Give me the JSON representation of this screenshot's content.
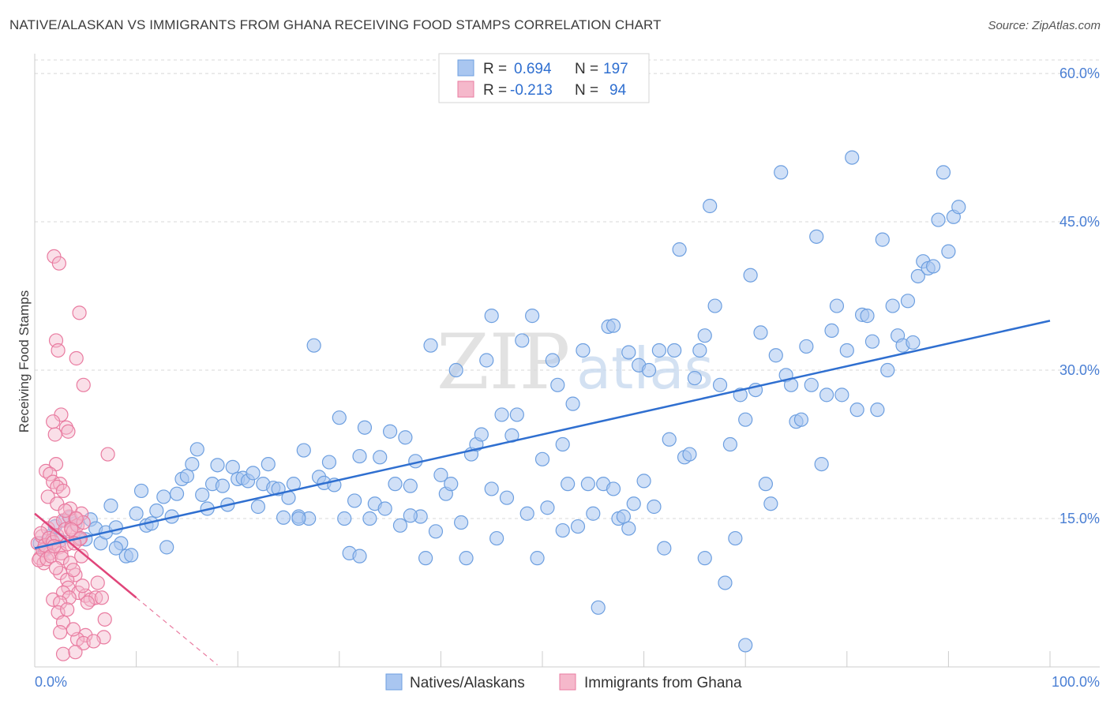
{
  "title": "NATIVE/ALASKAN VS IMMIGRANTS FROM GHANA RECEIVING FOOD STAMPS CORRELATION CHART",
  "source": "Source: ZipAtlas.com",
  "colors": {
    "blue": "#6d9fe0",
    "blue_fill": "#a9c6f0",
    "blue_line": "#2f6fd0",
    "pink": "#e97ba0",
    "pink_fill": "#f5b8cb",
    "pink_line": "#e0457a",
    "grid": "#d8d8d8",
    "axis_text": "#4a7fd4"
  },
  "legend": {
    "rows": [
      {
        "r_label": "R =",
        "r_value": "0.694",
        "n_label": "N =",
        "n_value": "197"
      },
      {
        "r_label": "R =",
        "r_value": "-0.213",
        "n_label": "N =",
        "n_value": "94"
      }
    ]
  },
  "chart_data": {
    "type": "scatter",
    "xlabel": "",
    "ylabel": "Receiving Food Stamps",
    "xlim": [
      0,
      100
    ],
    "ylim": [
      0,
      62
    ],
    "x_tick_labels": [
      "0.0%",
      "100.0%"
    ],
    "y_ticks": [
      15,
      30,
      45,
      60
    ],
    "y_tick_labels": [
      "15.0%",
      "30.0%",
      "45.0%",
      "60.0%"
    ],
    "watermark": "ZIPatlas",
    "series": [
      {
        "name": "Natives/Alaskans",
        "r": 0.694,
        "n": 197,
        "trend": {
          "x": [
            0,
            100
          ],
          "y": [
            12.0,
            35.0
          ]
        },
        "points": [
          [
            0.5,
            12.5
          ],
          [
            1,
            11.8
          ],
          [
            1.5,
            13.2
          ],
          [
            2,
            14.2
          ],
          [
            2.5,
            12.8
          ],
          [
            3,
            14.8
          ],
          [
            3.5,
            15.1
          ],
          [
            4,
            14.5
          ],
          [
            4.5,
            13.0
          ],
          [
            5,
            12.9
          ],
          [
            5.5,
            14.9
          ],
          [
            6,
            14.0
          ],
          [
            6.5,
            12.5
          ],
          [
            7,
            13.6
          ],
          [
            7.5,
            16.3
          ],
          [
            8,
            14.1
          ],
          [
            8.5,
            12.5
          ],
          [
            9,
            11.2
          ],
          [
            9.5,
            11.3
          ],
          [
            10,
            15.5
          ],
          [
            10.5,
            17.8
          ],
          [
            11,
            14.3
          ],
          [
            11.5,
            14.5
          ],
          [
            12,
            15.8
          ],
          [
            12.7,
            17.2
          ],
          [
            13,
            12.1
          ],
          [
            13.5,
            15.2
          ],
          [
            14,
            17.5
          ],
          [
            14.5,
            19.0
          ],
          [
            15,
            19.3
          ],
          [
            15.5,
            20.5
          ],
          [
            16,
            22.0
          ],
          [
            16.5,
            17.4
          ],
          [
            17,
            16.0
          ],
          [
            17.5,
            18.5
          ],
          [
            18,
            20.4
          ],
          [
            18.5,
            18.3
          ],
          [
            19,
            16.4
          ],
          [
            19.5,
            20.2
          ],
          [
            20,
            19.0
          ],
          [
            20.5,
            19.1
          ],
          [
            21,
            18.8
          ],
          [
            21.5,
            19.6
          ],
          [
            22,
            16.2
          ],
          [
            22.5,
            18.5
          ],
          [
            23,
            20.5
          ],
          [
            23.5,
            18.1
          ],
          [
            24,
            18.0
          ],
          [
            24.5,
            15.1
          ],
          [
            25,
            17.1
          ],
          [
            25.5,
            18.5
          ],
          [
            26,
            15.2
          ],
          [
            26.5,
            21.9
          ],
          [
            27,
            15.0
          ],
          [
            27.5,
            32.5
          ],
          [
            28,
            19.2
          ],
          [
            28.5,
            18.6
          ],
          [
            29,
            20.7
          ],
          [
            29.5,
            18.4
          ],
          [
            30,
            25.2
          ],
          [
            30.5,
            15.0
          ],
          [
            31,
            11.5
          ],
          [
            31.5,
            16.8
          ],
          [
            32,
            21.3
          ],
          [
            32.5,
            24.2
          ],
          [
            33,
            15.0
          ],
          [
            33.5,
            16.5
          ],
          [
            34,
            21.2
          ],
          [
            34.5,
            16.0
          ],
          [
            35,
            23.8
          ],
          [
            35.5,
            18.5
          ],
          [
            36,
            14.3
          ],
          [
            36.5,
            23.2
          ],
          [
            37,
            18.3
          ],
          [
            37.5,
            20.8
          ],
          [
            38,
            15.2
          ],
          [
            38.5,
            11.0
          ],
          [
            39,
            32.5
          ],
          [
            39.5,
            13.7
          ],
          [
            40,
            19.4
          ],
          [
            40.5,
            17.5
          ],
          [
            41,
            18.5
          ],
          [
            41.5,
            30.0
          ],
          [
            42,
            14.6
          ],
          [
            42.5,
            11.0
          ],
          [
            43,
            21.5
          ],
          [
            43.5,
            22.5
          ],
          [
            44,
            23.5
          ],
          [
            44.5,
            31.0
          ],
          [
            45,
            35.5
          ],
          [
            45.5,
            13.0
          ],
          [
            46,
            25.5
          ],
          [
            46.5,
            17.1
          ],
          [
            47,
            23.4
          ],
          [
            47.5,
            25.5
          ],
          [
            48,
            33.0
          ],
          [
            48.5,
            15.5
          ],
          [
            49,
            35.5
          ],
          [
            49.5,
            11.0
          ],
          [
            50,
            21.0
          ],
          [
            50.5,
            16.1
          ],
          [
            51,
            31.0
          ],
          [
            51.5,
            28.5
          ],
          [
            52,
            22.5
          ],
          [
            52.5,
            18.5
          ],
          [
            53,
            26.6
          ],
          [
            53.5,
            14.2
          ],
          [
            54,
            32.0
          ],
          [
            54.5,
            18.5
          ],
          [
            55,
            15.5
          ],
          [
            55.5,
            6.0
          ],
          [
            56,
            18.5
          ],
          [
            56.5,
            34.4
          ],
          [
            57,
            34.5
          ],
          [
            57.5,
            15.0
          ],
          [
            58,
            15.2
          ],
          [
            58.5,
            31.8
          ],
          [
            59,
            16.5
          ],
          [
            59.5,
            30.5
          ],
          [
            60,
            18.8
          ],
          [
            60.5,
            30.0
          ],
          [
            61,
            16.2
          ],
          [
            61.5,
            32.0
          ],
          [
            62,
            12.0
          ],
          [
            62.5,
            23.0
          ],
          [
            63,
            32.0
          ],
          [
            63.5,
            42.2
          ],
          [
            64,
            21.2
          ],
          [
            64.5,
            21.5
          ],
          [
            65,
            29.2
          ],
          [
            65.5,
            32.0
          ],
          [
            66,
            33.5
          ],
          [
            66.5,
            46.6
          ],
          [
            67,
            36.5
          ],
          [
            67.5,
            28.5
          ],
          [
            68,
            8.5
          ],
          [
            68.5,
            22.5
          ],
          [
            69,
            13.0
          ],
          [
            69.5,
            27.5
          ],
          [
            70,
            25.0
          ],
          [
            70.5,
            39.6
          ],
          [
            71,
            28.0
          ],
          [
            71.5,
            33.8
          ],
          [
            72,
            18.5
          ],
          [
            72.5,
            16.5
          ],
          [
            73,
            31.5
          ],
          [
            73.5,
            50.0
          ],
          [
            74,
            29.5
          ],
          [
            74.5,
            28.5
          ],
          [
            75,
            24.8
          ],
          [
            75.5,
            25.0
          ],
          [
            76,
            32.4
          ],
          [
            76.5,
            28.5
          ],
          [
            77,
            43.5
          ],
          [
            77.5,
            20.5
          ],
          [
            78,
            27.5
          ],
          [
            78.5,
            34.0
          ],
          [
            79,
            36.5
          ],
          [
            79.5,
            27.5
          ],
          [
            80,
            32.0
          ],
          [
            80.5,
            51.5
          ],
          [
            81,
            26.0
          ],
          [
            81.5,
            35.6
          ],
          [
            82,
            35.5
          ],
          [
            82.5,
            32.9
          ],
          [
            83,
            26.0
          ],
          [
            83.5,
            43.2
          ],
          [
            84,
            30.0
          ],
          [
            84.5,
            36.5
          ],
          [
            85,
            33.5
          ],
          [
            85.5,
            32.5
          ],
          [
            86,
            37.0
          ],
          [
            86.5,
            32.8
          ],
          [
            87,
            39.5
          ],
          [
            87.5,
            41.0
          ],
          [
            88,
            40.3
          ],
          [
            88.5,
            40.5
          ],
          [
            89,
            45.2
          ],
          [
            89.5,
            50.0
          ],
          [
            90,
            42.0
          ],
          [
            90.5,
            45.5
          ],
          [
            91,
            46.5
          ],
          [
            8,
            12.0
          ],
          [
            26,
            15.0
          ],
          [
            37,
            15.3
          ],
          [
            57,
            18.0
          ],
          [
            70,
            2.2
          ],
          [
            52,
            13.8
          ],
          [
            58.5,
            14.0
          ],
          [
            32,
            11.2
          ],
          [
            45,
            18.0
          ],
          [
            66,
            11.0
          ]
        ]
      },
      {
        "name": "Immigrants from Ghana",
        "r": -0.213,
        "n": 94,
        "trend": {
          "x": [
            0,
            10
          ],
          "y": [
            15.5,
            7.0
          ]
        },
        "trend_dashed": {
          "x": [
            10,
            18
          ],
          "y": [
            7.0,
            0.2
          ]
        },
        "points": [
          [
            0.3,
            12.5
          ],
          [
            0.5,
            11.0
          ],
          [
            0.7,
            13.2
          ],
          [
            0.9,
            10.5
          ],
          [
            1.1,
            12.0
          ],
          [
            1.3,
            14.0
          ],
          [
            1.5,
            11.5
          ],
          [
            1.7,
            12.8
          ],
          [
            0.4,
            10.8
          ],
          [
            0.6,
            13.5
          ],
          [
            0.8,
            11.8
          ],
          [
            1.0,
            12.3
          ],
          [
            1.2,
            10.9
          ],
          [
            1.4,
            13.0
          ],
          [
            1.6,
            11.2
          ],
          [
            1.8,
            12.6
          ],
          [
            2.0,
            14.5
          ],
          [
            2.2,
            13.3
          ],
          [
            2.4,
            12.1
          ],
          [
            2.6,
            11.5
          ],
          [
            2.8,
            14.8
          ],
          [
            3.0,
            13.9
          ],
          [
            3.2,
            12.4
          ],
          [
            3.4,
            15.2
          ],
          [
            3.6,
            14.1
          ],
          [
            3.8,
            13.7
          ],
          [
            4.0,
            15.0
          ],
          [
            4.2,
            14.3
          ],
          [
            4.4,
            12.9
          ],
          [
            4.6,
            15.5
          ],
          [
            4.8,
            14.6
          ],
          [
            1.9,
            41.5
          ],
          [
            2.4,
            40.8
          ],
          [
            4.4,
            35.8
          ],
          [
            2.1,
            33.0
          ],
          [
            2.3,
            32.0
          ],
          [
            4.1,
            31.2
          ],
          [
            4.8,
            28.5
          ],
          [
            2.6,
            25.5
          ],
          [
            3.1,
            24.2
          ],
          [
            3.3,
            23.8
          ],
          [
            2.0,
            23.5
          ],
          [
            1.8,
            24.8
          ],
          [
            7.2,
            21.5
          ],
          [
            2.1,
            20.5
          ],
          [
            1.1,
            19.8
          ],
          [
            1.5,
            19.5
          ],
          [
            1.8,
            18.7
          ],
          [
            2.5,
            18.5
          ],
          [
            2.2,
            18.2
          ],
          [
            2.8,
            17.8
          ],
          [
            1.3,
            17.2
          ],
          [
            2.2,
            16.5
          ],
          [
            3.5,
            16.0
          ],
          [
            3.0,
            15.8
          ],
          [
            4.1,
            15.0
          ],
          [
            3.6,
            13.9
          ],
          [
            4.5,
            13.0
          ],
          [
            3.9,
            12.5
          ],
          [
            2.7,
            11.0
          ],
          [
            3.5,
            10.5
          ],
          [
            2.5,
            9.5
          ],
          [
            4.0,
            9.3
          ],
          [
            3.2,
            8.8
          ],
          [
            6.2,
            8.5
          ],
          [
            3.3,
            8.0
          ],
          [
            2.8,
            7.5
          ],
          [
            4.3,
            7.5
          ],
          [
            5.0,
            7.2
          ],
          [
            5.5,
            6.8
          ],
          [
            6.0,
            7.0
          ],
          [
            6.6,
            7.0
          ],
          [
            3.4,
            7.0
          ],
          [
            1.8,
            6.8
          ],
          [
            2.5,
            6.5
          ],
          [
            5.2,
            6.5
          ],
          [
            2.3,
            5.5
          ],
          [
            3.2,
            5.8
          ],
          [
            2.8,
            4.5
          ],
          [
            6.9,
            4.8
          ],
          [
            2.5,
            3.5
          ],
          [
            5.0,
            3.2
          ],
          [
            6.8,
            3.0
          ],
          [
            4.2,
            2.8
          ],
          [
            4.8,
            2.4
          ],
          [
            3.8,
            3.8
          ],
          [
            2.8,
            1.3
          ],
          [
            4.0,
            1.5
          ],
          [
            5.8,
            2.6
          ],
          [
            4.7,
            8.2
          ],
          [
            2.1,
            10.0
          ],
          [
            3.8,
            9.8
          ],
          [
            4.6,
            11.2
          ],
          [
            1.9,
            12.2
          ]
        ]
      }
    ]
  },
  "bottom_legend": {
    "items": [
      "Natives/Alaskans",
      "Immigrants from Ghana"
    ]
  }
}
